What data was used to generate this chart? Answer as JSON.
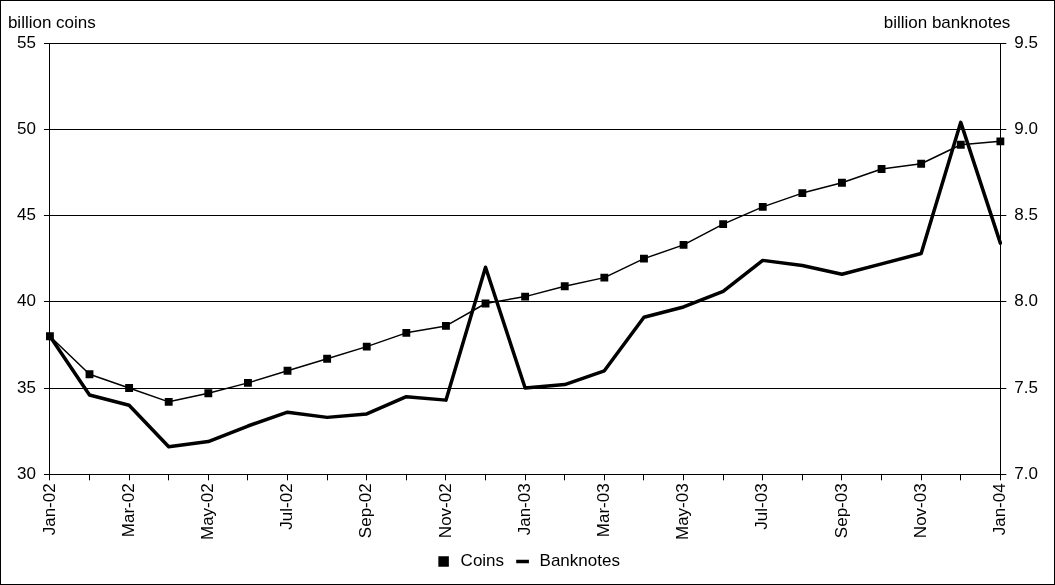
{
  "chart_data": {
    "type": "line",
    "ylabel": "billion coins",
    "y2label": "billion banknotes",
    "categories": [
      "Jan-02",
      null,
      "Mar-02",
      null,
      "May-02",
      null,
      "Jul-02",
      null,
      "Sep-02",
      null,
      "Nov-02",
      null,
      "Jan-03",
      null,
      "Mar-03",
      null,
      "May-03",
      null,
      "Jul-03",
      null,
      "Sep-03",
      null,
      "Nov-03",
      null,
      "Jan-04"
    ],
    "series": [
      {
        "name": "Coins",
        "color": "#000000",
        "values": [
          38.0,
          35.8,
          35.0,
          34.2,
          34.7,
          35.3,
          36.0,
          36.7,
          37.4,
          38.2,
          38.6,
          39.9,
          40.3,
          40.9,
          41.4,
          42.5,
          43.3,
          44.5,
          45.5,
          46.3,
          46.9,
          47.7,
          48.0,
          49.1,
          49.3
        ]
      },
      {
        "name": "Banknotes",
        "color": "#000000",
        "axis": "y2",
        "marker": "none",
        "values": [
          7.8,
          7.46,
          7.4,
          7.16,
          7.19,
          7.28,
          7.36,
          7.33,
          7.35,
          7.45,
          7.43,
          8.2,
          7.5,
          7.52,
          7.6,
          7.91,
          7.97,
          8.06,
          8.24,
          8.21,
          8.16,
          8.22,
          8.28,
          9.04,
          8.34
        ]
      }
    ],
    "ylim": [
      30,
      55
    ],
    "yticks": [
      30,
      35,
      40,
      45,
      50,
      55
    ],
    "y2lim": [
      7.0,
      9.5
    ],
    "y2ticks": [
      {
        "value": 7.0,
        "label": "7.0"
      },
      {
        "value": 7.5,
        "label": "7.5"
      },
      {
        "value": 8.0,
        "label": "8.0"
      },
      {
        "value": 8.5,
        "label": "8.5"
      },
      {
        "value": 9.0,
        "label": "9.0"
      },
      {
        "value": 9.5,
        "label": "9.5"
      }
    ],
    "grid": "y",
    "legend": "bottom",
    "marker": "square",
    "line_style": "solid"
  }
}
